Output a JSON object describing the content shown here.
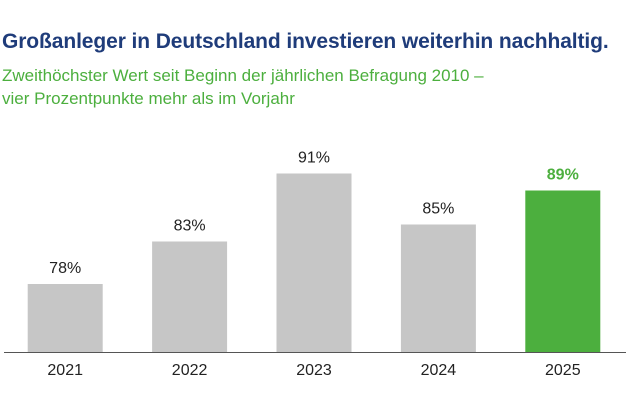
{
  "title": "Großanleger in Deutschland investieren weiterhin nachhaltig.",
  "subtitle_lines": [
    "Zweithöchster Wert seit Beginn der jährlichen Befragung 2010 –",
    "vier Prozentpunkte mehr als im Vorjahr"
  ],
  "colors": {
    "title": "#1f3c7a",
    "subtitle": "#4caf3e",
    "bar": "#c6c6c6",
    "highlight_bar": "#4caf3e",
    "axis": "#555555"
  },
  "chart_data": {
    "type": "bar",
    "categories": [
      "2021",
      "2022",
      "2023",
      "2024",
      "2025"
    ],
    "values": [
      78,
      83,
      91,
      85,
      89
    ],
    "data_labels": [
      "78%",
      "83%",
      "91%",
      "85%",
      "89%"
    ],
    "highlight_index": 4,
    "ylim": [
      70,
      93
    ],
    "grid": false,
    "xlabel": "",
    "ylabel": ""
  }
}
